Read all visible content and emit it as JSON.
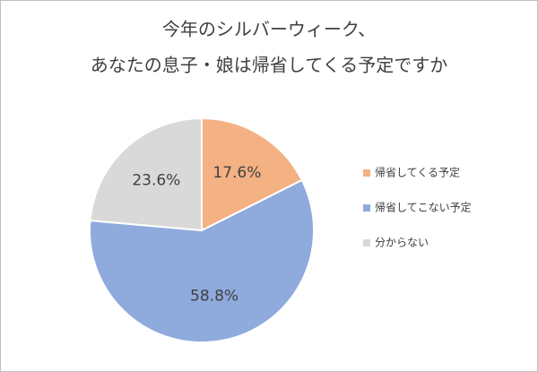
{
  "chart_data": {
    "type": "pie",
    "title": [
      "今年のシルバーウィーク、",
      "あなたの息子・娘は帰省してくる予定ですか"
    ],
    "categories": [
      "帰省してくる予定",
      "帰省してこない予定",
      "分からない"
    ],
    "values": [
      17.6,
      58.8,
      23.6
    ],
    "value_labels": [
      "17.6%",
      "58.8%",
      "23.6%"
    ],
    "colors": [
      "#f4b183",
      "#8faadc",
      "#d9d9d9"
    ],
    "legend": "right"
  }
}
